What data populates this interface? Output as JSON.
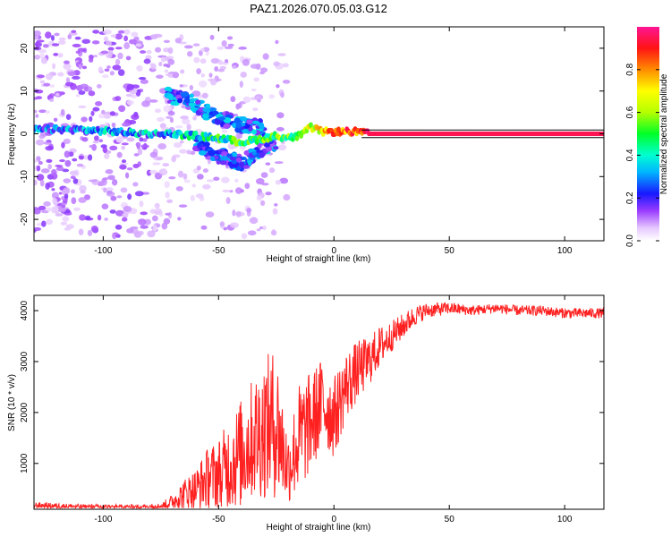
{
  "figure": {
    "title": "PAZ1.2026.070.05.03.G12"
  },
  "chart_data": [
    {
      "type": "heatmap",
      "title": "PAZ1.2026.070.05.03.G12",
      "xlabel": "Height of straight line (km)",
      "ylabel": "Frequency (Hz)",
      "xlim": [
        -130,
        117
      ],
      "ylim": [
        -25,
        25
      ],
      "xticks": [
        -100,
        -50,
        0,
        50,
        100
      ],
      "xtick_labels": [
        "-100",
        "-50",
        "0",
        "50",
        "100"
      ],
      "yticks": [
        -20,
        -10,
        0,
        10,
        20
      ],
      "ytick_labels": [
        "-20",
        "-10",
        "0",
        "10",
        "20"
      ],
      "colorbar": {
        "label": "Normalized spectral amplitude",
        "range": [
          0,
          1
        ],
        "ticks": [
          0,
          0.2,
          0.4,
          0.6,
          0.8
        ],
        "tick_labels": [
          "0.0",
          "0.2",
          "0.4",
          "0.6",
          "0.8"
        ]
      },
      "ridge": {
        "x": [
          -128,
          -110,
          -95,
          -80,
          -70,
          -60,
          -50,
          -40,
          -30,
          -25,
          -20,
          -15,
          -10,
          -5,
          0,
          5,
          10,
          15,
          20,
          40,
          60,
          80,
          100,
          117
        ],
        "y": [
          1,
          1,
          0.5,
          0,
          0,
          -0.5,
          -1,
          -2,
          -1,
          -0.5,
          -1,
          -0.5,
          1.5,
          0.5,
          0.5,
          0.5,
          0.5,
          0,
          0,
          0,
          0,
          0,
          0,
          0
        ],
        "amplitude": [
          0.25,
          0.25,
          0.3,
          0.3,
          0.35,
          0.4,
          0.45,
          0.45,
          0.5,
          0.55,
          0.5,
          0.6,
          0.65,
          0.7,
          0.8,
          0.85,
          0.85,
          0.95,
          0.95,
          0.95,
          0.95,
          0.95,
          0.95,
          0.95
        ]
      },
      "upper_branch": {
        "x": [
          -72,
          -65,
          -60,
          -55,
          -50,
          -45,
          -40,
          -35,
          -30
        ],
        "y": [
          9,
          8,
          7,
          5,
          4,
          3,
          2,
          2,
          1
        ]
      },
      "lower_branch": {
        "x": [
          -60,
          -55,
          -50,
          -45,
          -40,
          -35,
          -30,
          -25
        ],
        "y": [
          -2,
          -4,
          -5,
          -6,
          -7,
          -5,
          -3,
          -2
        ]
      }
    },
    {
      "type": "line",
      "xlabel": "Height of straight line (km)",
      "ylabel": "SNR (10 * v/v)",
      "xlim": [
        -130,
        117
      ],
      "ylim": [
        100,
        4300
      ],
      "xticks": [
        -100,
        -50,
        0,
        50,
        100
      ],
      "xtick_labels": [
        "-100",
        "-50",
        "0",
        "50",
        "100"
      ],
      "yticks": [
        1000,
        2000,
        3000,
        4000
      ],
      "ytick_labels": [
        "1000",
        "2000",
        "3000",
        "4000"
      ],
      "series": [
        {
          "name": "SNR",
          "color": "#ff2020",
          "x": [
            -130,
            -110,
            -90,
            -75,
            -70,
            -65,
            -60,
            -55,
            -50,
            -45,
            -40,
            -35,
            -30,
            -25,
            -20,
            -15,
            -10,
            -5,
            0,
            5,
            10,
            15,
            20,
            25,
            30,
            35,
            40,
            50,
            60,
            70,
            80,
            90,
            100,
            110,
            117
          ],
          "y": [
            180,
            150,
            140,
            160,
            250,
            400,
            500,
            700,
            800,
            1000,
            1200,
            1500,
            1700,
            1800,
            900,
            1500,
            1800,
            2200,
            1900,
            2500,
            2800,
            3000,
            3300,
            3500,
            3700,
            3900,
            4000,
            4050,
            4000,
            4050,
            4000,
            4000,
            3950,
            3950,
            3950
          ],
          "noise": [
            60,
            50,
            50,
            60,
            150,
            300,
            400,
            600,
            700,
            900,
            1100,
            1200,
            1400,
            1500,
            700,
            1100,
            1000,
            900,
            800,
            700,
            600,
            500,
            400,
            300,
            250,
            200,
            150,
            120,
            100,
            100,
            100,
            100,
            100,
            100,
            100
          ]
        }
      ]
    }
  ]
}
